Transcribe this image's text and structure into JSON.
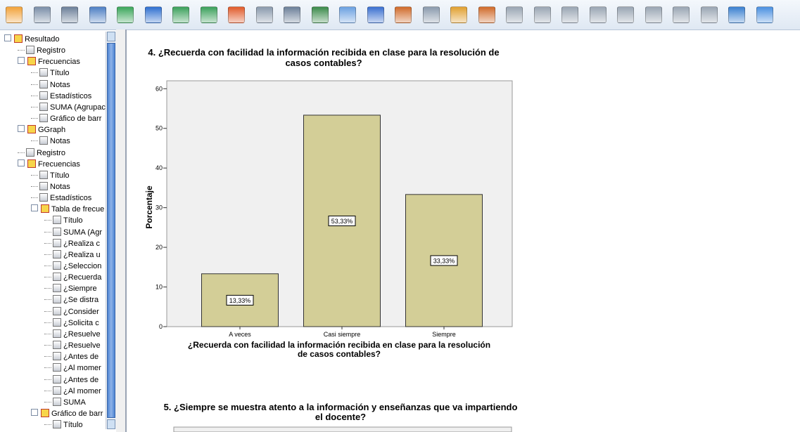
{
  "tree": {
    "label": "Resultado",
    "children": [
      {
        "label": "Registro"
      },
      {
        "label": "Frecuencias",
        "children": [
          {
            "label": "Título"
          },
          {
            "label": "Notas"
          },
          {
            "label": "Estadísticos"
          },
          {
            "label": "SUMA (Agrupac"
          },
          {
            "label": "Gráfico de barr"
          }
        ]
      },
      {
        "label": "GGraph",
        "children": [
          {
            "label": "Notas"
          }
        ]
      },
      {
        "label": "Registro"
      },
      {
        "label": "Frecuencias",
        "children": [
          {
            "label": "Título"
          },
          {
            "label": "Notas"
          },
          {
            "label": "Estadísticos"
          },
          {
            "label": "Tabla de frecue",
            "children": [
              {
                "label": "Título"
              },
              {
                "label": "SUMA (Agr"
              },
              {
                "label": "¿Realiza c"
              },
              {
                "label": "¿Realiza u"
              },
              {
                "label": "¿Seleccion"
              },
              {
                "label": "¿Recuerda"
              },
              {
                "label": "¿Siempre"
              },
              {
                "label": "¿Se distra"
              },
              {
                "label": "¿Consider"
              },
              {
                "label": "¿Solicita c"
              },
              {
                "label": "¿Resuelve"
              },
              {
                "label": "¿Resuelve"
              },
              {
                "label": "¿Antes de"
              },
              {
                "label": "¿Al momer"
              },
              {
                "label": "¿Antes de"
              },
              {
                "label": "¿Al momer"
              },
              {
                "label": "SUMA"
              }
            ]
          },
          {
            "label": "Gráfico de barr",
            "children": [
              {
                "label": "Título"
              }
            ]
          }
        ]
      }
    ]
  },
  "chart_data": {
    "type": "bar",
    "title_lines": [
      "4. ¿Recuerda con facilidad la información recibida en clase para la resolución de",
      "casos contables?"
    ],
    "xlabel_lines": [
      "¿Recuerda con facilidad la información recibida en clase para la resolución",
      "de casos contables?"
    ],
    "ylabel": "Porcentaje",
    "categories": [
      "A veces",
      "Casi siempre",
      "Siempre"
    ],
    "values": [
      13.33,
      53.33,
      33.33
    ],
    "value_labels": [
      "13,33%",
      "53,33%",
      "33,33%"
    ],
    "color": "#d3ce97",
    "ylim": [
      0,
      62
    ],
    "yticks": [
      0,
      10,
      20,
      30,
      40,
      50,
      60
    ]
  },
  "next_chart": {
    "title_lines": [
      "5. ¿Siempre se muestra atento a la información y enseñanzas que va impartiendo",
      "el docente?"
    ]
  }
}
